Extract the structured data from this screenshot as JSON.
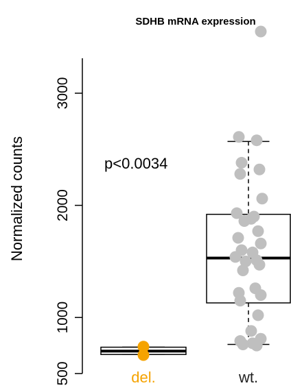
{
  "chart_data": {
    "type": "box",
    "title": "SDHB mRNA expression",
    "ylabel": "Normalized counts",
    "xlabel": "",
    "ylim": [
      500,
      3550
    ],
    "yticks": [
      500,
      1000,
      2000,
      3000
    ],
    "annotation": "p<0.0034",
    "grid": false,
    "colors": {
      "del": "#F5A300",
      "wt": "#BFBFBF",
      "wt_label": "#222222"
    },
    "groups": [
      {
        "name": "del.",
        "q1": 670,
        "median": 700,
        "q3": 735,
        "whisker_low": 670,
        "whisker_high": 735,
        "points": [
          740,
          665
        ]
      },
      {
        "name": "wt.",
        "q1": 1130,
        "median": 1530,
        "q3": 1920,
        "whisker_low": 760,
        "whisker_high": 2570,
        "points": [
          3550,
          2610,
          2580,
          2380,
          2320,
          2280,
          2060,
          1930,
          1900,
          1880,
          1860,
          1770,
          1710,
          1660,
          1600,
          1580,
          1540,
          1510,
          1500,
          1470,
          1420,
          1260,
          1220,
          1200,
          1150,
          1020,
          880,
          810,
          790,
          770,
          760,
          750
        ]
      }
    ]
  }
}
